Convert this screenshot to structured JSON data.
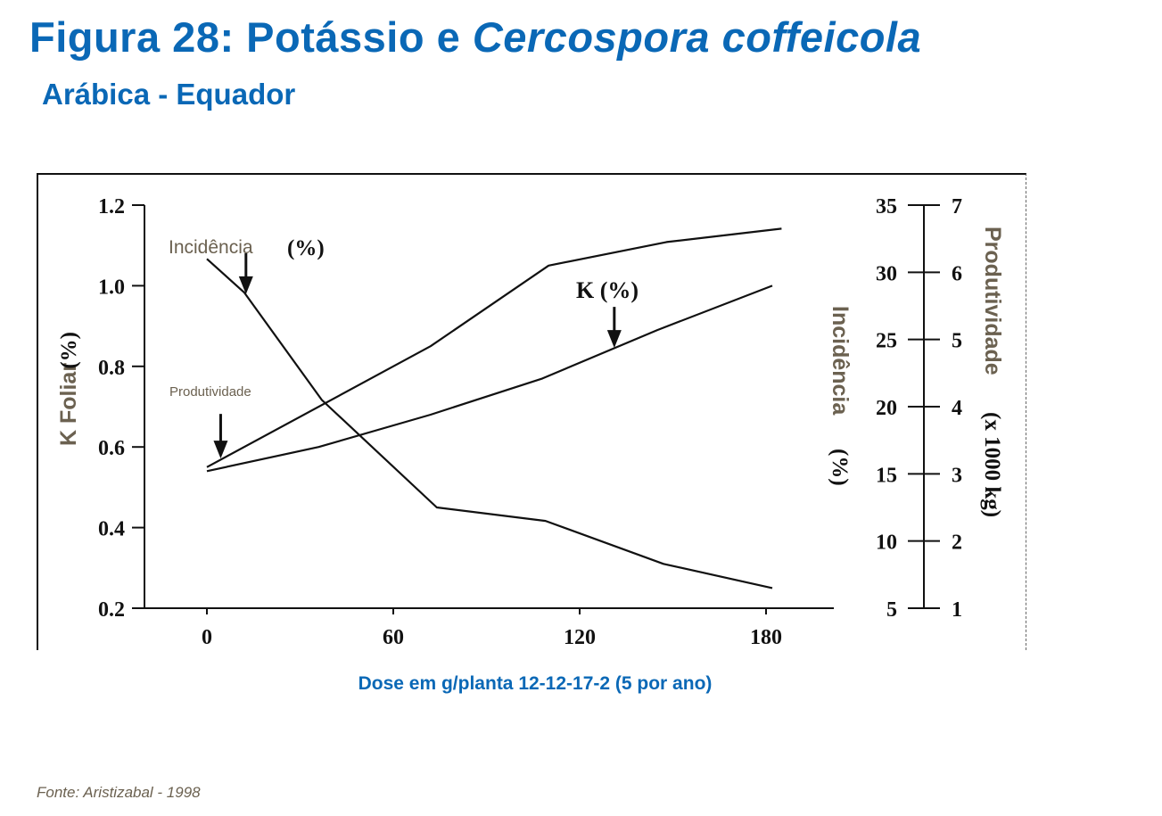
{
  "header": {
    "title_main": "Figura 28: Potássio e ",
    "title_italic": "Cercospora coffeicola",
    "subtitle": "Arábica -  Equador"
  },
  "footer": {
    "source": "Fonte: Aristizabal - 1998"
  },
  "colors": {
    "title": "#0a68b6",
    "label_brown": "#6b6150",
    "line": "#111111"
  },
  "chart_data": {
    "type": "line",
    "xlabel": "Dose em g/planta 12-12-17-2 (5 por ano)",
    "x_ticks": [
      "0",
      "60",
      "120",
      "180"
    ],
    "xlim": [
      -25,
      205
    ],
    "grid": false,
    "y_left": {
      "label_main": "K Foliar",
      "label_unit": "(%)",
      "ticks": [
        "0.2",
        "0.4",
        "0.6",
        "0.8",
        "1.0",
        "1.2"
      ],
      "ylim": [
        0.2,
        1.2
      ]
    },
    "y_right_incidence": {
      "label_main": "Incidência",
      "label_unit": "(%)",
      "ticks": [
        "5",
        "10",
        "15",
        "20",
        "25",
        "30",
        "35"
      ],
      "ylim": [
        5,
        35
      ]
    },
    "y_right_yield": {
      "label_main": "Produtividade",
      "label_unit": "(x 1000 kg)",
      "ticks": [
        "1",
        "2",
        "3",
        "4",
        "5",
        "6",
        "7"
      ],
      "ylim": [
        1,
        7
      ]
    },
    "series": [
      {
        "name": "K (%)",
        "axis": "left",
        "x": [
          0,
          36,
          72,
          108,
          145,
          182
        ],
        "values": [
          0.54,
          0.6,
          0.68,
          0.77,
          0.89,
          1.0
        ]
      },
      {
        "name": "Incidência (%)",
        "axis": "incidence",
        "x": [
          0,
          12,
          37,
          74,
          109,
          147,
          182
        ],
        "values": [
          31.0,
          28.5,
          20.5,
          12.5,
          11.5,
          8.3,
          6.5
        ]
      },
      {
        "name": "Produtividade",
        "axis": "yield",
        "x": [
          0,
          72,
          110,
          148,
          185
        ],
        "values": [
          3.1,
          4.9,
          6.1,
          6.45,
          6.65
        ]
      }
    ],
    "annotations": [
      {
        "text": "Incidência",
        "suffix": "(%)",
        "target_series": "Incidência (%)",
        "target_x": 12
      },
      {
        "text": "K (%)",
        "target_series": "K (%)",
        "target_x": 130
      },
      {
        "text": "Produtividade",
        "target_series": "Produtividade",
        "target_x": 3
      }
    ]
  }
}
